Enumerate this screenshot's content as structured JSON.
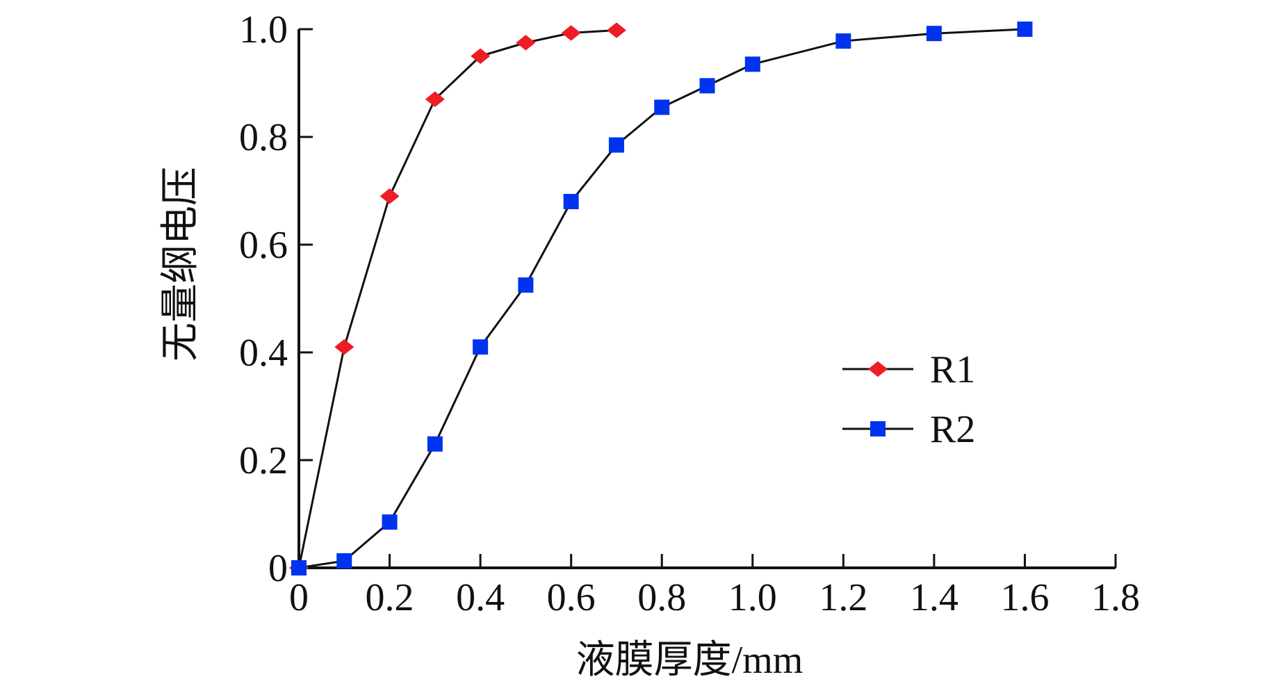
{
  "chart_data": {
    "type": "line",
    "title": "",
    "xlabel": "液膜厚度/mm",
    "ylabel": "无量纲电压",
    "xlim": [
      0,
      1.8
    ],
    "ylim": [
      0,
      1.0
    ],
    "xticks": [
      0,
      0.2,
      0.4,
      0.6,
      0.8,
      1.0,
      1.2,
      1.4,
      1.6,
      1.8
    ],
    "xtick_labels": [
      "0",
      "0.2",
      "0.4",
      "0.6",
      "0.8",
      "1.0",
      "1.2",
      "1.4",
      "1.6",
      "1.8"
    ],
    "yticks": [
      0,
      0.2,
      0.4,
      0.6,
      0.8,
      1.0
    ],
    "ytick_labels": [
      "0",
      "0.2",
      "0.4",
      "0.6",
      "0.8",
      "1.0"
    ],
    "grid": false,
    "legend_position": "center-right",
    "series": [
      {
        "name": "R1",
        "marker": "diamond",
        "color": "#ee1c25",
        "x": [
          0,
          0.1,
          0.2,
          0.3,
          0.4,
          0.5,
          0.6,
          0.7
        ],
        "y": [
          0,
          0.41,
          0.69,
          0.87,
          0.95,
          0.975,
          0.993,
          0.998
        ]
      },
      {
        "name": "R2",
        "marker": "square",
        "color": "#0033ee",
        "x": [
          0,
          0.1,
          0.2,
          0.3,
          0.4,
          0.5,
          0.6,
          0.7,
          0.8,
          0.9,
          1.0,
          1.2,
          1.4,
          1.6
        ],
        "y": [
          0,
          0.013,
          0.085,
          0.23,
          0.41,
          0.525,
          0.68,
          0.785,
          0.855,
          0.895,
          0.935,
          0.978,
          0.992,
          1.0
        ]
      }
    ]
  }
}
